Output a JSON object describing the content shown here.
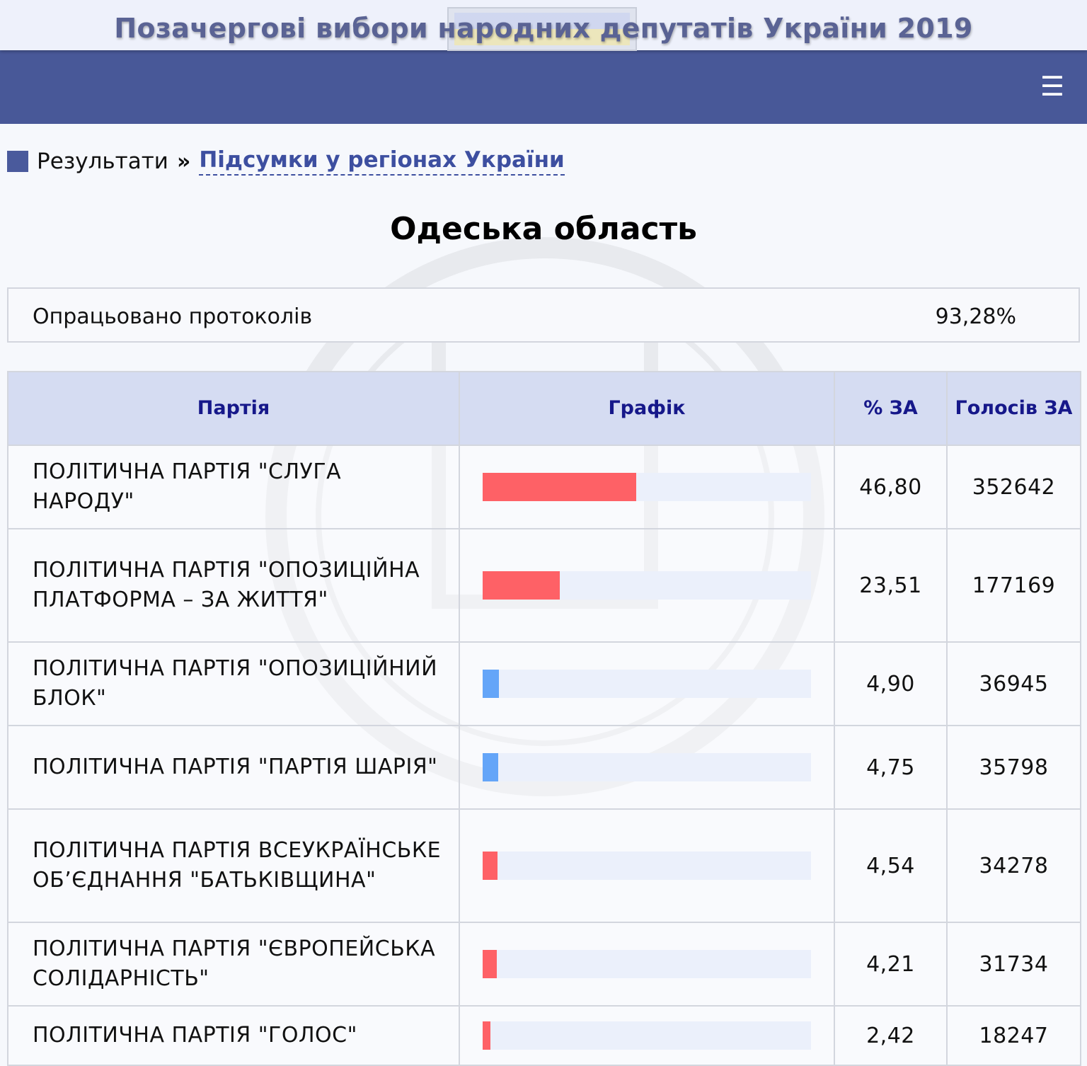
{
  "header": {
    "site_title": "Позачергові вибори народних депутатів України 2019",
    "menu_icon": "hamburger-icon"
  },
  "breadcrumb": {
    "root": "Результати",
    "separator": "»",
    "link": "Підсумки у регіонах України"
  },
  "region": {
    "title": "Одеська область"
  },
  "protocols": {
    "label": "Опрацьовано протоколів",
    "value": "93,28%"
  },
  "table": {
    "headers": {
      "party": "Партія",
      "graph": "Графік",
      "percent": "% ЗА",
      "votes": "Голосів ЗА"
    },
    "colors": {
      "passed": "#fe6166",
      "not_passed_opposition": "#64a5f8"
    },
    "rows": [
      {
        "party": "ПОЛІТИЧНА ПАРТІЯ \"СЛУГА НАРОДУ\"",
        "percent": "46,80",
        "votes": "352642",
        "share": 0.468,
        "color": "#fe6166"
      },
      {
        "party": "ПОЛІТИЧНА ПАРТІЯ \"ОПОЗИЦІЙНА ПЛАТФОРМА – ЗА ЖИТТЯ\"",
        "percent": "23,51",
        "votes": "177169",
        "share": 0.2351,
        "color": "#fe6166"
      },
      {
        "party": "ПОЛІТИЧНА ПАРТІЯ \"ОПОЗИЦІЙНИЙ БЛОК\"",
        "percent": "4,90",
        "votes": "36945",
        "share": 0.049,
        "color": "#64a5f8"
      },
      {
        "party": "ПОЛІТИЧНА ПАРТІЯ \"ПАРТІЯ ШАРІЯ\"",
        "percent": "4,75",
        "votes": "35798",
        "share": 0.0475,
        "color": "#64a5f8"
      },
      {
        "party": "ПОЛІТИЧНА ПАРТІЯ ВСЕУКРАЇНСЬКЕ ОБ’ЄДНАННЯ \"БАТЬКІВЩИНА\"",
        "percent": "4,54",
        "votes": "34278",
        "share": 0.0454,
        "color": "#fe6166"
      },
      {
        "party": "ПОЛІТИЧНА ПАРТІЯ \"ЄВРОПЕЙСЬКА СОЛІДАРНІСТЬ\"",
        "percent": "4,21",
        "votes": "31734",
        "share": 0.0421,
        "color": "#fe6166"
      },
      {
        "party": "ПОЛІТИЧНА ПАРТІЯ \"ГОЛОС\"",
        "percent": "2,42",
        "votes": "18247",
        "share": 0.0242,
        "color": "#fe6166"
      }
    ]
  }
}
